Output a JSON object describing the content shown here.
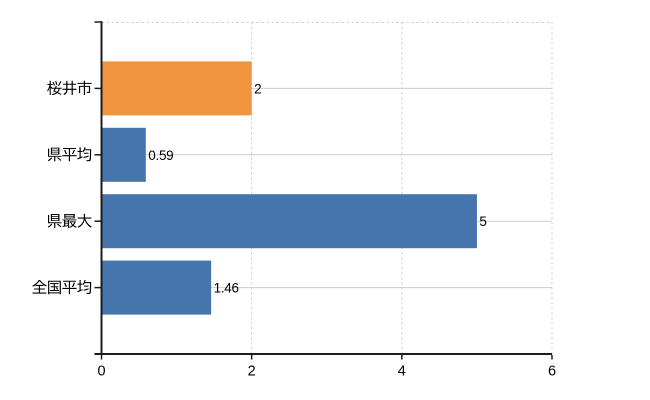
{
  "window": {
    "background": "#ffffff"
  },
  "chart_data": {
    "type": "bar",
    "orientation": "horizontal",
    "title": "",
    "xlabel": "",
    "ylabel": "",
    "categories": [
      "桜井市",
      "県平均",
      "県最大",
      "全国平均"
    ],
    "values": [
      2,
      0.59,
      5,
      1.46
    ],
    "value_labels": [
      "2",
      "0.59",
      "5",
      "1.46"
    ],
    "series": [
      {
        "name": "",
        "values": [
          2,
          0.59,
          5,
          1.46
        ]
      }
    ],
    "xlim": [
      0,
      6
    ],
    "xticks": [
      0,
      2,
      4,
      6
    ],
    "xtick_labels": [
      "0",
      "2",
      "4",
      "6"
    ],
    "grid": true,
    "legend": false,
    "legend_position": "none",
    "bar_colors": [
      "#f0953e",
      "#4475ab",
      "#4475ab",
      "#4475ab"
    ],
    "highlight_category": "桜井市",
    "highlight_color": "#f0953e",
    "base_color": "#4475ab"
  },
  "colors": {
    "bar_orange": "#f0953e",
    "bar_blue": "#4475ab",
    "axis": "#1c1c1c",
    "gridline": "#cccccc",
    "dashed_border": "#d0d0d0",
    "text": "#000000",
    "background": "#ffffff"
  }
}
